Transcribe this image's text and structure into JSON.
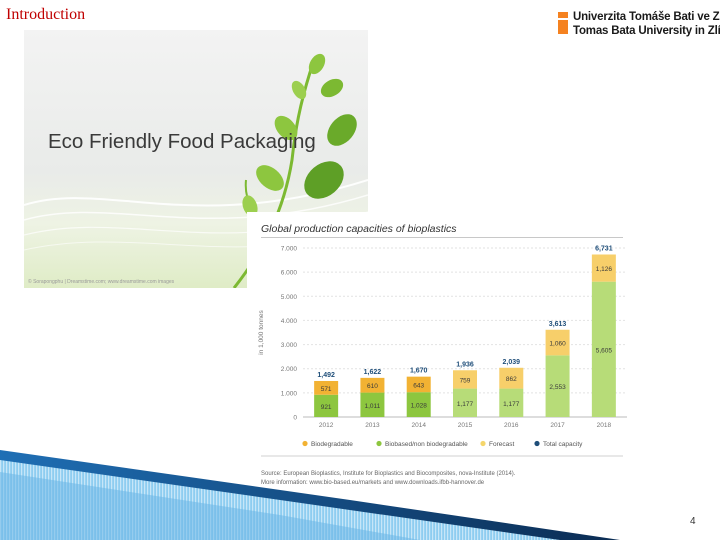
{
  "slide": {
    "title": "Introduction",
    "page_number": "4"
  },
  "logo": {
    "line1": "Univerzita Tomáše Bati ve Zlíně",
    "line2": "Tomas Bata University in Zlín"
  },
  "eco_image": {
    "title": "Eco Friendly Food Packaging",
    "caption": "© Sorapongphu | Dreamstime.com; www.dreamstime.com images"
  },
  "chart_data": {
    "type": "bar",
    "title": "Global production capacities of bioplastics",
    "ylabel": "in 1,000 tonnes",
    "categories": [
      "2012",
      "2013",
      "2014",
      "2015",
      "2016",
      "2017",
      "2018"
    ],
    "y_ticks": [
      "0",
      "1.000",
      "2.000",
      "3.000",
      "4.000",
      "5.000",
      "6.000",
      "7.000"
    ],
    "ylim": [
      0,
      7000
    ],
    "series": [
      {
        "name": "Biobased/non biodegradable",
        "values": [
          921,
          1011,
          1028,
          1177,
          1177,
          2553,
          5605
        ],
        "labels": [
          "921",
          "1,011",
          "1,028",
          "1,177",
          "1,177",
          "2,553",
          "5,605"
        ]
      },
      {
        "name": "Biodegradable",
        "values": [
          571,
          610,
          643,
          759,
          862,
          1060,
          1126
        ],
        "labels": [
          "571",
          "610",
          "643",
          "759",
          "862",
          "1,060",
          "1,126"
        ]
      }
    ],
    "totals": [
      1492,
      1622,
      1670,
      1936,
      2039,
      3613,
      6731
    ],
    "total_labels": [
      "1,492",
      "1,622",
      "1,670",
      "1,936",
      "2,039",
      "3,613",
      "6,731"
    ],
    "forecast_from_index": 3,
    "legend": [
      {
        "name": "Biodegradable",
        "color": "#f2b233"
      },
      {
        "name": "Biobased/non biodegradable",
        "color": "#8dc63f"
      },
      {
        "name": "Forecast",
        "color": "#f5d66b"
      },
      {
        "name": "Total capacity",
        "color": "#1f4e79"
      }
    ],
    "legend_position": "bottom",
    "grid": true,
    "source_lines": [
      "Source: European Bioplastics, Institute for Bioplastics and Biocomposites, nova-Institute (2014).",
      "More information: www.bio-based.eu/markets and www.downloads.ifbb-hannover.de"
    ]
  },
  "colors": {
    "title_red": "#c00000",
    "biodegradable": "#f2b233",
    "biobased": "#8dc63f",
    "biodegradable_forecast": "#f7cf6a",
    "biobased_forecast": "#b7dc78",
    "total_label": "#1f4e79",
    "logo_orange": "#f58220"
  }
}
